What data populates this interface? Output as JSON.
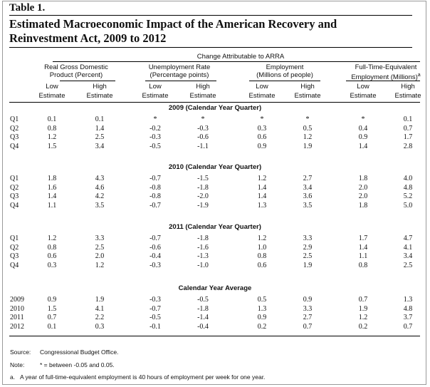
{
  "table_label": "Table 1.",
  "title_lines": [
    "Estimated Macroeconomic Impact of the American Recovery and",
    "Reinvestment Act, 2009 to 2012"
  ],
  "spanner": "Change Attributable to ARRA",
  "groups": [
    {
      "line1": "Real Gross Domestic",
      "line2": "Product (Percent)"
    },
    {
      "line1": "Unemployment Rate",
      "line2": "(Percentage points)"
    },
    {
      "line1": "Employment",
      "line2": "(Millions of people)"
    },
    {
      "line1": "Full-Time-Equivalent",
      "line2": "Employment (Millions)",
      "sup": "a"
    }
  ],
  "estimate_labels": {
    "low_top": "Low",
    "high_top": "High",
    "bottom": "Estimate"
  },
  "sections": [
    {
      "title": "2009 (Calendar Year Quarter)",
      "rows": [
        {
          "label": "Q1",
          "values": [
            "0.1",
            "0.1",
            "*",
            "*",
            "*",
            "*",
            "*",
            "0.1"
          ]
        },
        {
          "label": "Q2",
          "values": [
            "0.8",
            "1.4",
            "-0.2",
            "-0.3",
            "0.3",
            "0.5",
            "0.4",
            "0.7"
          ]
        },
        {
          "label": "Q3",
          "values": [
            "1.2",
            "2.5",
            "-0.3",
            "-0.6",
            "0.6",
            "1.2",
            "0.9",
            "1.7"
          ]
        },
        {
          "label": "Q4",
          "values": [
            "1.5",
            "3.4",
            "-0.5",
            "-1.1",
            "0.9",
            "1.9",
            "1.4",
            "2.8"
          ]
        }
      ]
    },
    {
      "title": "2010 (Calendar Year Quarter)",
      "rows": [
        {
          "label": "Q1",
          "values": [
            "1.8",
            "4.3",
            "-0.7",
            "-1.5",
            "1.2",
            "2.7",
            "1.8",
            "4.0"
          ]
        },
        {
          "label": "Q2",
          "values": [
            "1.6",
            "4.6",
            "-0.8",
            "-1.8",
            "1.4",
            "3.4",
            "2.0",
            "4.8"
          ]
        },
        {
          "label": "Q3",
          "values": [
            "1.4",
            "4.2",
            "-0.8",
            "-2.0",
            "1.4",
            "3.6",
            "2.0",
            "5.2"
          ]
        },
        {
          "label": "Q4",
          "values": [
            "1.1",
            "3.5",
            "-0.7",
            "-1.9",
            "1.3",
            "3.5",
            "1.8",
            "5.0"
          ]
        }
      ]
    },
    {
      "title": "2011 (Calendar Year Quarter)",
      "rows": [
        {
          "label": "Q1",
          "values": [
            "1.2",
            "3.3",
            "-0.7",
            "-1.8",
            "1.2",
            "3.3",
            "1.7",
            "4.7"
          ]
        },
        {
          "label": "Q2",
          "values": [
            "0.8",
            "2.5",
            "-0.6",
            "-1.6",
            "1.0",
            "2.9",
            "1.4",
            "4.1"
          ]
        },
        {
          "label": "Q3",
          "values": [
            "0.6",
            "2.0",
            "-0.4",
            "-1.3",
            "0.8",
            "2.5",
            "1.1",
            "3.4"
          ]
        },
        {
          "label": "Q4",
          "values": [
            "0.3",
            "1.2",
            "-0.3",
            "-1.0",
            "0.6",
            "1.9",
            "0.8",
            "2.5"
          ]
        }
      ]
    },
    {
      "title": "Calendar Year Average",
      "rows": [
        {
          "label": "2009",
          "values": [
            "0.9",
            "1.9",
            "-0.3",
            "-0.5",
            "0.5",
            "0.9",
            "0.7",
            "1.3"
          ]
        },
        {
          "label": "2010",
          "values": [
            "1.5",
            "4.1",
            "-0.7",
            "-1.8",
            "1.3",
            "3.3",
            "1.9",
            "4.8"
          ]
        },
        {
          "label": "2011",
          "values": [
            "0.7",
            "2.2",
            "-0.5",
            "-1.4",
            "0.9",
            "2.7",
            "1.2",
            "3.7"
          ]
        },
        {
          "label": "2012",
          "values": [
            "0.1",
            "0.3",
            "-0.1",
            "-0.4",
            "0.2",
            "0.7",
            "0.2",
            "0.7"
          ]
        }
      ]
    }
  ],
  "notes": {
    "source_key": "Source:",
    "source_text": "Congressional Budget Office.",
    "note_key": "Note:",
    "note_text": "* = between -0.05 and 0.05.",
    "footnote_key": "a.",
    "footnote_text": "A year of full-time-equivalent employment is 40 hours of employment per week for one year."
  }
}
